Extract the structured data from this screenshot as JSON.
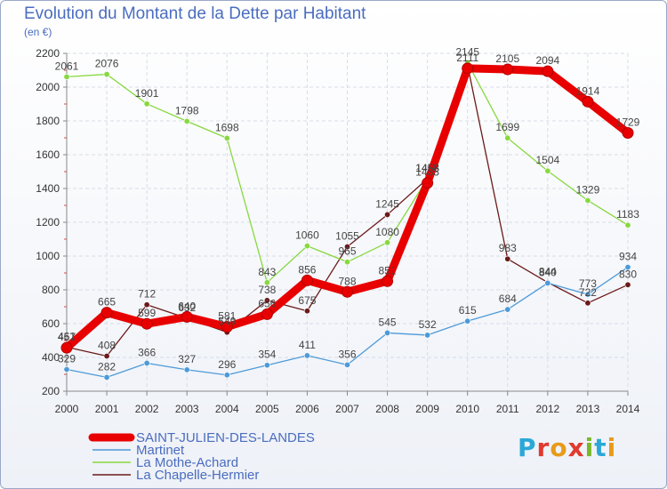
{
  "title": "Evolution du Montant de la Dette par Habitant",
  "subtitle": "(en €)",
  "logo": {
    "text": "Proxiti"
  },
  "chart_data": {
    "type": "line",
    "x": [
      "2000",
      "2001",
      "2002",
      "2003",
      "2004",
      "2005",
      "2006",
      "2007",
      "2008",
      "2009",
      "2010",
      "2011",
      "2012",
      "2013",
      "2014"
    ],
    "ylim": [
      200,
      2200
    ],
    "yticks": [
      200,
      400,
      600,
      800,
      1000,
      1200,
      1400,
      1600,
      1800,
      2000,
      2200
    ],
    "grid": true,
    "legend": "bottom-left",
    "series": [
      {
        "name": "SAINT-JULIEN-DES-LANDES",
        "color": "#e80000",
        "values": [
          457,
          665,
          599,
          640,
          581,
          656,
          856,
          788,
          851,
          1433,
          2111,
          2105,
          2094,
          1914,
          1729
        ],
        "labels": [
          "457",
          "665",
          "599",
          "640",
          "581",
          "656",
          "856",
          "788",
          "851",
          "1433",
          "2111",
          "2105",
          "2094",
          "1914",
          "1729"
        ]
      },
      {
        "name": "Martinet",
        "color": "#4d9ad8",
        "values": [
          329,
          282,
          366,
          327,
          296,
          354,
          411,
          356,
          545,
          532,
          615,
          684,
          840,
          773,
          934
        ],
        "labels": [
          "329",
          "282",
          "366",
          "327",
          "296",
          "354",
          "411",
          "356",
          "545",
          "532",
          "615",
          "684",
          "840",
          "773",
          "934"
        ]
      },
      {
        "name": "La Mothe-Achard",
        "color": "#88d840",
        "values": [
          2061,
          2076,
          1901,
          1798,
          1698,
          843,
          1060,
          965,
          1080,
          1458,
          2145,
          1699,
          1504,
          1329,
          1183
        ],
        "labels": [
          "2061",
          "2076",
          "1901",
          "1798",
          "1698",
          "843",
          "1060",
          "965",
          "1080",
          "1458",
          "2145",
          "1699",
          "1504",
          "1329",
          "1183"
        ]
      },
      {
        "name": "La Chapelle-Hermier",
        "color": "#6b1a1a",
        "values": [
          461,
          408,
          712,
          632,
          549,
          738,
          675,
          1055,
          1245,
          1458,
          2130,
          983,
          844,
          722,
          830
        ],
        "labels": [
          "461",
          "408",
          "712",
          "632",
          "549",
          "738",
          "675",
          "1055",
          "1245",
          "1458",
          "",
          "983",
          "844",
          "722",
          "830"
        ]
      }
    ]
  }
}
